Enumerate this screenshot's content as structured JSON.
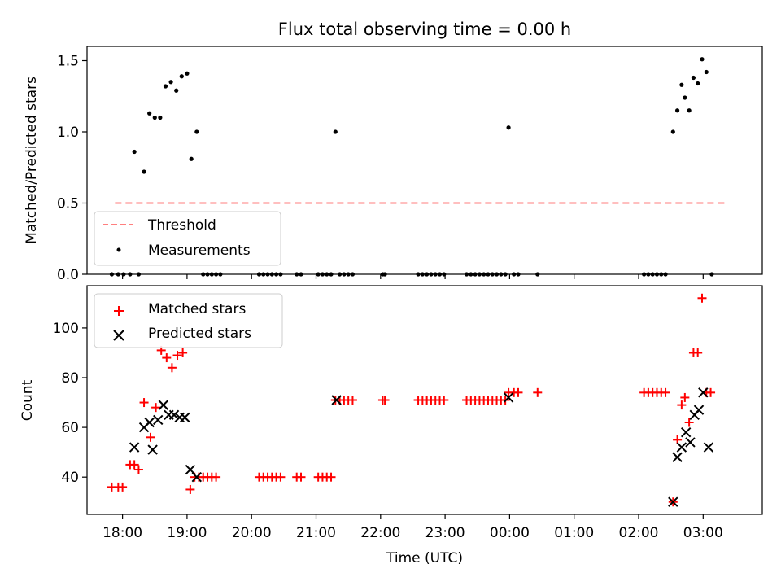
{
  "title": "Flux total observing time = 0.00 h",
  "colors": {
    "threshold": "#ff7f7f",
    "measurement": "#000000",
    "matched": "#ff0000",
    "predicted": "#000000"
  },
  "chart_data": [
    {
      "type": "scatter",
      "ylabel": "Matched/Predicted stars",
      "xlim": [
        "17:27",
        "03:55"
      ],
      "ylim": [
        0,
        1.6
      ],
      "yticks": [
        0.0,
        0.5,
        1.0,
        1.5
      ],
      "yticklabels": [
        "0.0",
        "0.5",
        "1.0",
        "1.5"
      ],
      "legend": {
        "position": "lower-left",
        "entries": [
          "Threshold",
          "Measurements"
        ]
      },
      "threshold": {
        "name": "Threshold",
        "y": 0.5,
        "x": [
          "17:53",
          "03:20"
        ]
      },
      "series": [
        {
          "name": "Measurements",
          "points": [
            [
              "17:50",
              0
            ],
            [
              "17:56",
              0
            ],
            [
              "18:01",
              0
            ],
            [
              "18:07",
              0
            ],
            [
              "18:11",
              0.86
            ],
            [
              "18:15",
              0
            ],
            [
              "18:20",
              0.72
            ],
            [
              "18:25",
              1.13
            ],
            [
              "18:30",
              1.1
            ],
            [
              "18:35",
              1.1
            ],
            [
              "18:40",
              1.32
            ],
            [
              "18:45",
              1.35
            ],
            [
              "18:50",
              1.29
            ],
            [
              "18:55",
              1.39
            ],
            [
              "19:00",
              1.41
            ],
            [
              "19:04",
              0.81
            ],
            [
              "19:09",
              1.0
            ],
            [
              "19:15",
              0
            ],
            [
              "19:19",
              0
            ],
            [
              "19:23",
              0
            ],
            [
              "19:27",
              0
            ],
            [
              "19:31",
              0
            ],
            [
              "20:07",
              0
            ],
            [
              "20:11",
              0
            ],
            [
              "20:15",
              0
            ],
            [
              "20:19",
              0
            ],
            [
              "20:23",
              0
            ],
            [
              "20:27",
              0
            ],
            [
              "20:42",
              0
            ],
            [
              "20:46",
              0
            ],
            [
              "21:02",
              0
            ],
            [
              "21:06",
              0
            ],
            [
              "21:10",
              0
            ],
            [
              "21:14",
              0
            ],
            [
              "21:18",
              1.0
            ],
            [
              "21:22",
              0
            ],
            [
              "21:26",
              0
            ],
            [
              "21:30",
              0
            ],
            [
              "21:34",
              0
            ],
            [
              "22:02",
              0
            ],
            [
              "22:04",
              0
            ],
            [
              "22:35",
              0
            ],
            [
              "22:39",
              0
            ],
            [
              "22:43",
              0
            ],
            [
              "22:47",
              0
            ],
            [
              "22:51",
              0
            ],
            [
              "22:55",
              0
            ],
            [
              "22:59",
              0
            ],
            [
              "23:20",
              0
            ],
            [
              "23:24",
              0
            ],
            [
              "23:28",
              0
            ],
            [
              "23:32",
              0
            ],
            [
              "23:36",
              0
            ],
            [
              "23:40",
              0
            ],
            [
              "23:44",
              0
            ],
            [
              "23:48",
              0
            ],
            [
              "23:52",
              0
            ],
            [
              "23:56",
              0
            ],
            [
              "23:59",
              1.03
            ],
            [
              "00:04",
              0
            ],
            [
              "00:08",
              0
            ],
            [
              "00:26",
              0
            ],
            [
              "02:05",
              0
            ],
            [
              "02:09",
              0
            ],
            [
              "02:13",
              0
            ],
            [
              "02:17",
              0
            ],
            [
              "02:21",
              0
            ],
            [
              "02:25",
              0
            ],
            [
              "02:32",
              1.0
            ],
            [
              "02:36",
              1.15
            ],
            [
              "02:40",
              1.33
            ],
            [
              "02:43",
              1.24
            ],
            [
              "02:47",
              1.15
            ],
            [
              "02:51",
              1.38
            ],
            [
              "02:55",
              1.34
            ],
            [
              "02:59",
              1.51
            ],
            [
              "03:03",
              1.42
            ],
            [
              "03:08",
              0
            ]
          ]
        }
      ]
    },
    {
      "type": "scatter",
      "xlabel": "Time (UTC)",
      "ylabel": "Count",
      "xlim": [
        "17:27",
        "03:55"
      ],
      "ylim": [
        25,
        117
      ],
      "yticks": [
        40,
        60,
        80,
        100
      ],
      "yticklabels": [
        "40",
        "60",
        "80",
        "100"
      ],
      "xticks": [
        "18:00",
        "19:00",
        "20:00",
        "21:00",
        "22:00",
        "23:00",
        "00:00",
        "01:00",
        "02:00",
        "03:00"
      ],
      "xticklabels": [
        "18:00",
        "19:00",
        "20:00",
        "21:00",
        "22:00",
        "23:00",
        "00:00",
        "01:00",
        "02:00",
        "03:00"
      ],
      "legend": {
        "position": "upper-left",
        "entries": [
          "Matched stars",
          "Predicted stars"
        ]
      },
      "series": [
        {
          "name": "Matched stars",
          "marker": "plus",
          "points": [
            [
              "17:50",
              36
            ],
            [
              "17:56",
              36
            ],
            [
              "18:00",
              36
            ],
            [
              "18:07",
              45
            ],
            [
              "18:11",
              45
            ],
            [
              "18:15",
              43
            ],
            [
              "18:20",
              70
            ],
            [
              "18:26",
              56
            ],
            [
              "18:31",
              68
            ],
            [
              "18:36",
              91
            ],
            [
              "18:41",
              88
            ],
            [
              "18:46",
              84
            ],
            [
              "18:51",
              89
            ],
            [
              "18:56",
              90
            ],
            [
              "19:03",
              35
            ],
            [
              "19:07",
              40
            ],
            [
              "19:11",
              40
            ],
            [
              "19:15",
              40
            ],
            [
              "19:19",
              40
            ],
            [
              "19:23",
              40
            ],
            [
              "19:27",
              40
            ],
            [
              "20:07",
              40
            ],
            [
              "20:11",
              40
            ],
            [
              "20:15",
              40
            ],
            [
              "20:19",
              40
            ],
            [
              "20:23",
              40
            ],
            [
              "20:27",
              40
            ],
            [
              "20:42",
              40
            ],
            [
              "20:46",
              40
            ],
            [
              "21:02",
              40
            ],
            [
              "21:06",
              40
            ],
            [
              "21:10",
              40
            ],
            [
              "21:14",
              40
            ],
            [
              "21:18",
              71
            ],
            [
              "21:22",
              71
            ],
            [
              "21:26",
              71
            ],
            [
              "21:30",
              71
            ],
            [
              "21:34",
              71
            ],
            [
              "22:02",
              71
            ],
            [
              "22:04",
              71
            ],
            [
              "22:35",
              71
            ],
            [
              "22:39",
              71
            ],
            [
              "22:43",
              71
            ],
            [
              "22:47",
              71
            ],
            [
              "22:51",
              71
            ],
            [
              "22:55",
              71
            ],
            [
              "22:59",
              71
            ],
            [
              "23:20",
              71
            ],
            [
              "23:24",
              71
            ],
            [
              "23:28",
              71
            ],
            [
              "23:32",
              71
            ],
            [
              "23:36",
              71
            ],
            [
              "23:40",
              71
            ],
            [
              "23:44",
              71
            ],
            [
              "23:48",
              71
            ],
            [
              "23:52",
              71
            ],
            [
              "23:56",
              71
            ],
            [
              "23:59",
              74
            ],
            [
              "00:04",
              74
            ],
            [
              "00:08",
              74
            ],
            [
              "00:26",
              74
            ],
            [
              "02:05",
              74
            ],
            [
              "02:09",
              74
            ],
            [
              "02:13",
              74
            ],
            [
              "02:17",
              74
            ],
            [
              "02:21",
              74
            ],
            [
              "02:25",
              74
            ],
            [
              "02:32",
              30
            ],
            [
              "02:36",
              55
            ],
            [
              "02:40",
              69
            ],
            [
              "02:43",
              72
            ],
            [
              "02:47",
              62
            ],
            [
              "02:51",
              90
            ],
            [
              "02:55",
              90
            ],
            [
              "02:59",
              112
            ],
            [
              "03:03",
              74
            ],
            [
              "03:07",
              74
            ]
          ]
        },
        {
          "name": "Predicted stars",
          "marker": "x",
          "points": [
            [
              "18:11",
              52
            ],
            [
              "18:20",
              60
            ],
            [
              "18:25",
              62
            ],
            [
              "18:28",
              51
            ],
            [
              "18:33",
              63
            ],
            [
              "18:38",
              69
            ],
            [
              "18:43",
              65
            ],
            [
              "18:48",
              65
            ],
            [
              "18:53",
              64
            ],
            [
              "18:58",
              64
            ],
            [
              "19:03",
              43
            ],
            [
              "19:09",
              40
            ],
            [
              "21:19",
              71
            ],
            [
              "23:59",
              72
            ],
            [
              "02:32",
              30
            ],
            [
              "02:36",
              48
            ],
            [
              "02:40",
              52
            ],
            [
              "02:44",
              58
            ],
            [
              "02:48",
              54
            ],
            [
              "02:52",
              65
            ],
            [
              "02:56",
              67
            ],
            [
              "03:00",
              74
            ],
            [
              "03:05",
              52
            ]
          ]
        }
      ]
    }
  ]
}
